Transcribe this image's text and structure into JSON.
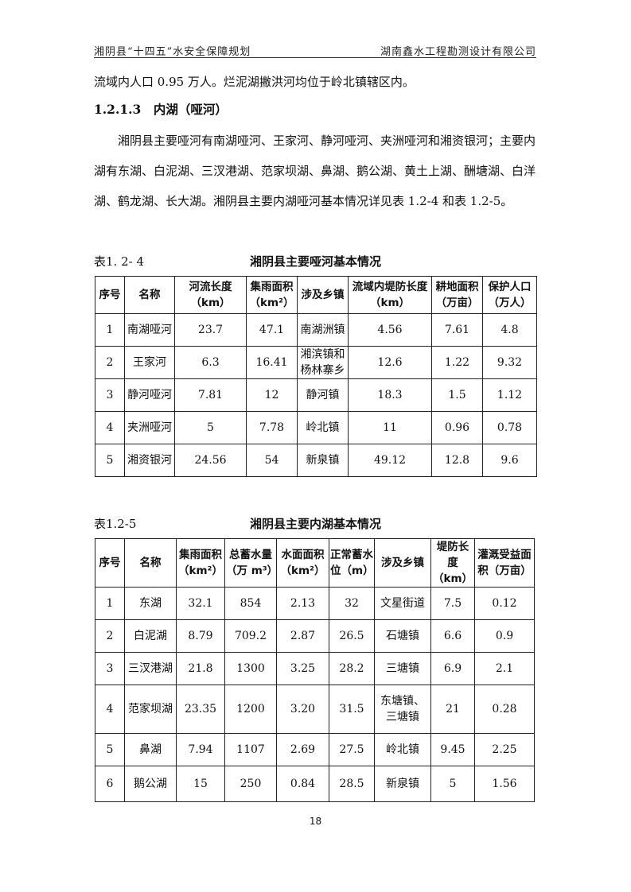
{
  "header": {
    "left": "湘阴县“十四五”水安全保障规划",
    "right": "湖南鑫水工程勘测设计有限公司"
  },
  "para1": "流域内人口 0.95 万人。烂泥湖撇洪河均位于岭北镇辖区内。",
  "section": "1.2.1.3　内湖（哑河）",
  "para2": "　　湘阴县主要哑河有南湖哑河、王家河、静河哑河、夹洲哑河和湘资银河；主要内湖有东湖、白泥湖、三汊港湖、范家坝湖、鼻湖、鹅公湖、黄土上湖、酬塘湖、白洋湖、鹤龙湖、长大湖。湘阴县主要内湖哑河基本情况详见表 1.2-4 和表 1.2-5。",
  "table1": {
    "number": "表1. 2- 4",
    "title": "湘阴县主要哑河基本情况",
    "headers": [
      "序号",
      "名称",
      "河流长度（km）",
      "集雨面积（km²）",
      "涉及乡镇",
      "流域内堤防长度（km）",
      "耕地面积（万亩）",
      "保护人口（万人）"
    ],
    "rows": [
      [
        "1",
        "南湖哑河",
        "23.7",
        "47.1",
        "南湖洲镇",
        "4.56",
        "7.61",
        "4.8"
      ],
      [
        "2",
        "王家河",
        "6.3",
        "16.41",
        "湘滨镇和杨林寨乡",
        "12.6",
        "1.22",
        "9.32"
      ],
      [
        "3",
        "静河哑河",
        "7.81",
        "12",
        "静河镇",
        "18.3",
        "1.5",
        "1.12"
      ],
      [
        "4",
        "夹洲哑河",
        "5",
        "7.78",
        "岭北镇",
        "11",
        "0.96",
        "0.78"
      ],
      [
        "5",
        "湘资银河",
        "24.56",
        "54",
        "新泉镇",
        "49.12",
        "12.8",
        "9.6"
      ]
    ]
  },
  "table2": {
    "number": "表1.2-5",
    "title": "湘阴县主要内湖基本情况",
    "headers": [
      "序号",
      "名称",
      "集雨面积（km²）",
      "总蓄水量（万 m³）",
      "水面面积（km²）",
      "正常蓄水位（m）",
      "涉及乡镇",
      "堤防长度（km）",
      "灌溉受益面积（万亩）"
    ],
    "rows": [
      [
        "1",
        "东湖",
        "32.1",
        "854",
        "2.13",
        "32",
        "文星街道",
        "7.5",
        "0.12"
      ],
      [
        "2",
        "白泥湖",
        "8.79",
        "709.2",
        "2.87",
        "26.5",
        "石塘镇",
        "6.6",
        "0.9"
      ],
      [
        "3",
        "三汊港湖",
        "21.8",
        "1300",
        "3.25",
        "28.2",
        "三塘镇",
        "6.9",
        "2.1"
      ],
      [
        "4",
        "范家坝湖",
        "23.35",
        "1200",
        "3.20",
        "31.5",
        "东塘镇、三塘镇",
        "21",
        "0.28"
      ],
      [
        "5",
        "鼻湖",
        "7.94",
        "1107",
        "2.69",
        "27.5",
        "岭北镇",
        "9.45",
        "2.25"
      ],
      [
        "6",
        "鹅公湖",
        "15",
        "250",
        "0.84",
        "28.5",
        "新泉镇",
        "5",
        "1.56"
      ]
    ]
  },
  "page_number": "18"
}
